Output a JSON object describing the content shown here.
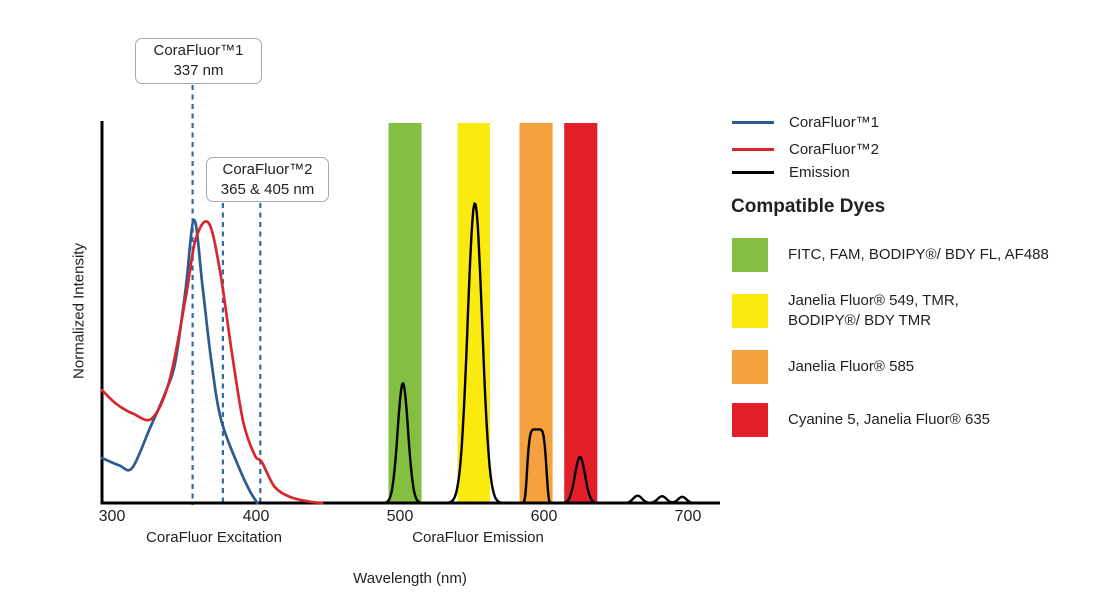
{
  "figure": {
    "y_axis_label": "Normalized Intensity",
    "x_axis_label": "Wavelength (nm)",
    "excitation_section_label": "CoraFluor Excitation",
    "emission_section_label": "CoraFluor Emission"
  },
  "annotations": {
    "box1": {
      "line1": "CoraFluor™1",
      "line2": "337 nm"
    },
    "box2": {
      "line1": "CoraFluor™2",
      "line2": "365 & 405 nm"
    }
  },
  "legend": {
    "items": [
      {
        "label": "CoraFluor™1",
        "color": "#2B5C8F"
      },
      {
        "label": "CoraFluor™2",
        "color": "#D8262F"
      },
      {
        "label": "Emission",
        "color": "#000000"
      }
    ]
  },
  "compatible_dyes": {
    "heading": "Compatible Dyes",
    "items": [
      {
        "color": "#85BF41",
        "lines": [
          "FITC, FAM, BODIPY®/ BDY FL, AF488"
        ]
      },
      {
        "color": "#FBEA0F",
        "lines": [
          "Janelia Fluor® 549, TMR,",
          "BODIPY®/ BDY TMR"
        ]
      },
      {
        "color": "#F5A13D",
        "lines": [
          "Janelia Fluor® 585"
        ]
      },
      {
        "color": "#E21E29",
        "lines": [
          "Cyanine 5, Janelia Fluor® 635"
        ]
      }
    ]
  },
  "chart_data": {
    "type": "line",
    "title": "CoraFluor excitation and emission spectra with compatible dye filter bands",
    "xlabel": "Wavelength (nm)",
    "ylabel": "Normalized Intensity",
    "x_ticks": [
      300,
      400,
      500,
      600,
      700
    ],
    "x_range_nm": [
      293,
      722
    ],
    "y_range": [
      0,
      1.35
    ],
    "grid": false,
    "legend_position": "right",
    "excitation_markers": {
      "corafluor1_labeled_nm": [
        337
      ],
      "corafluor2_labeled_nm": [
        365,
        405
      ],
      "drawn_at_nm": [
        356,
        377,
        403
      ]
    },
    "bands": [
      {
        "name": "green",
        "color": "#85BF41",
        "nm": [
          492,
          515
        ],
        "dyes": "FITC, FAM, BODIPY®/ BDY FL, AF488"
      },
      {
        "name": "yellow",
        "color": "#FBEA0F",
        "nm": [
          540,
          562.5
        ],
        "dyes": "Janelia Fluor® 549, TMR, BODIPY®/ BDY TMR"
      },
      {
        "name": "orange",
        "color": "#F5A13D",
        "nm": [
          583,
          606
        ],
        "dyes": "Janelia Fluor® 585"
      },
      {
        "name": "red",
        "color": "#E21E29",
        "nm": [
          614,
          637
        ],
        "dyes": "Cyanine 5, Janelia Fluor® 635"
      }
    ],
    "series": [
      {
        "name": "CoraFluor™1",
        "kind": "excitation",
        "color": "#2B5C8F",
        "points": [
          [
            293,
            0.159
          ],
          [
            305,
            0.133
          ],
          [
            314,
            0.124
          ],
          [
            326,
            0.26
          ],
          [
            337,
            0.39
          ],
          [
            344,
            0.5
          ],
          [
            351,
            0.75
          ],
          [
            357,
            1.0
          ],
          [
            363,
            0.76
          ],
          [
            369,
            0.5
          ],
          [
            376,
            0.29
          ],
          [
            389,
            0.115
          ],
          [
            396,
            0.04
          ],
          [
            401,
            0.0
          ]
        ]
      },
      {
        "name": "CoraFluor™2",
        "kind": "excitation",
        "color": "#D8262F",
        "points": [
          [
            293,
            0.399
          ],
          [
            303,
            0.35
          ],
          [
            315,
            0.315
          ],
          [
            328,
            0.3
          ],
          [
            340,
            0.435
          ],
          [
            351,
            0.72
          ],
          [
            358,
            0.93
          ],
          [
            367,
            0.99
          ],
          [
            375,
            0.82
          ],
          [
            383,
            0.54
          ],
          [
            391,
            0.29
          ],
          [
            399,
            0.17
          ],
          [
            404,
            0.145
          ],
          [
            413,
            0.057
          ],
          [
            424,
            0.021
          ],
          [
            437,
            0.005
          ],
          [
            446,
            0.0
          ]
        ]
      },
      {
        "name": "Emission",
        "kind": "emission",
        "color": "#000000",
        "sample_range_nm": [
          455,
          722
        ],
        "peaks": [
          {
            "shape": "gaussian",
            "center_nm": 502,
            "height": 0.424,
            "width_nm": 3.6
          },
          {
            "shape": "gaussian",
            "center_nm": 552,
            "height": 1.06,
            "width_nm": 5.0
          },
          {
            "shape": "flattop",
            "center_nm": 595,
            "height": 0.26,
            "width_nm": 7.0
          },
          {
            "shape": "gaussian",
            "center_nm": 625,
            "height": 0.163,
            "width_nm": 3.5
          },
          {
            "shape": "gaussian",
            "center_nm": 665,
            "height": 0.026,
            "width_nm": 3.0
          },
          {
            "shape": "gaussian",
            "center_nm": 682,
            "height": 0.024,
            "width_nm": 3.0
          },
          {
            "shape": "gaussian",
            "center_nm": 696,
            "height": 0.022,
            "width_nm": 2.8
          }
        ]
      }
    ]
  }
}
